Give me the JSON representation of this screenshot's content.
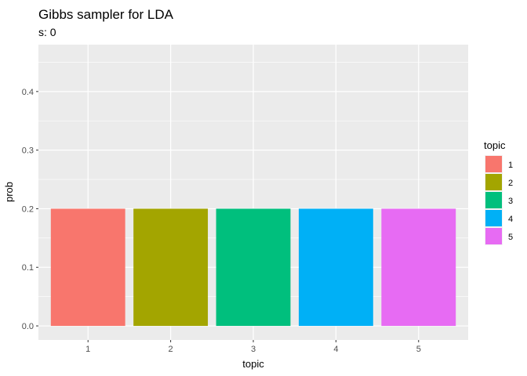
{
  "chart_data": {
    "type": "bar",
    "title": "Gibbs sampler for LDA",
    "subtitle": "s: 0",
    "xlabel": "topic",
    "ylabel": "prob",
    "categories": [
      "1",
      "2",
      "3",
      "4",
      "5"
    ],
    "values": [
      0.2,
      0.2,
      0.2,
      0.2,
      0.2
    ],
    "colors": [
      "#F8766D",
      "#A3A500",
      "#00BF7D",
      "#00B0F6",
      "#E76BF3"
    ],
    "ylim": [
      -0.024,
      0.48
    ],
    "yticks": [
      0.0,
      0.1,
      0.2,
      0.3,
      0.4
    ],
    "ytick_labels": [
      "0.0",
      "0.1",
      "0.2",
      "0.3",
      "0.4"
    ],
    "grid": true,
    "panel_background": "#EBEBEB",
    "legend": {
      "title": "topic",
      "placement": "right",
      "items": [
        "1",
        "2",
        "3",
        "4",
        "5"
      ]
    }
  }
}
